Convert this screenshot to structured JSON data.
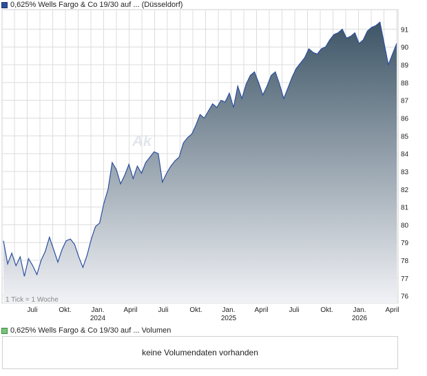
{
  "price_legend": {
    "label": "0,625% Wells Fargo & Co 19/30 auf ... (Düsseldorf)",
    "color": "#2b4f9e"
  },
  "volume_legend": {
    "label": "0,625% Wells Fargo & Co 19/30 auf ... Volumen",
    "color": "#7ac47a"
  },
  "volume_panel": {
    "message": "keine Volumendaten vorhanden"
  },
  "watermark": "Ak",
  "tick_note": "1 Tick = 1 Woche",
  "colors": {
    "line": "#2b4f9e",
    "area_top": "#3d5566",
    "area_bottom": "#f1f2f6",
    "grid": "#dcdcdc"
  },
  "chart_data": {
    "type": "area",
    "title": "0,625% Wells Fargo & Co 19/30 auf ... (Düsseldorf)",
    "xlabel": "",
    "ylabel": "",
    "ylim": [
      75.6,
      92.1
    ],
    "yticks": [
      76,
      77,
      78,
      79,
      80,
      81,
      82,
      83,
      84,
      85,
      86,
      87,
      88,
      89,
      90,
      91
    ],
    "x_tick_labels": [
      "Juli",
      "Okt.",
      "Jan.",
      "April",
      "Juli",
      "Okt.",
      "Jan.",
      "April",
      "Juli",
      "Okt.",
      "Jan.",
      "April"
    ],
    "year_labels": [
      "2024",
      "2025",
      "2026"
    ],
    "grid": true,
    "x_start": "2023-05",
    "x_end": "2026-04",
    "values": [
      79.1,
      77.8,
      78.4,
      77.7,
      78.2,
      77.1,
      78.1,
      77.7,
      77.2,
      78.0,
      78.5,
      79.3,
      78.6,
      77.9,
      78.6,
      79.1,
      79.2,
      78.9,
      78.2,
      77.6,
      78.3,
      79.2,
      79.9,
      80.1,
      81.2,
      82.0,
      83.5,
      83.1,
      82.3,
      82.8,
      83.4,
      82.6,
      83.3,
      82.9,
      83.5,
      83.8,
      84.1,
      84.0,
      82.4,
      82.9,
      83.3,
      83.6,
      83.8,
      84.6,
      84.9,
      85.1,
      85.6,
      86.2,
      86.0,
      86.4,
      86.8,
      86.6,
      87.0,
      86.9,
      87.4,
      86.6,
      87.8,
      87.1,
      87.9,
      88.4,
      88.6,
      88.0,
      87.3,
      87.8,
      88.4,
      88.6,
      87.9,
      87.1,
      87.7,
      88.3,
      88.8,
      89.1,
      89.4,
      89.9,
      89.7,
      89.6,
      89.9,
      90.0,
      90.4,
      90.7,
      90.8,
      91.0,
      90.5,
      90.6,
      90.8,
      90.2,
      90.4,
      90.9,
      91.1,
      91.2,
      91.4,
      90.2,
      89.0,
      89.6,
      90.2
    ]
  }
}
